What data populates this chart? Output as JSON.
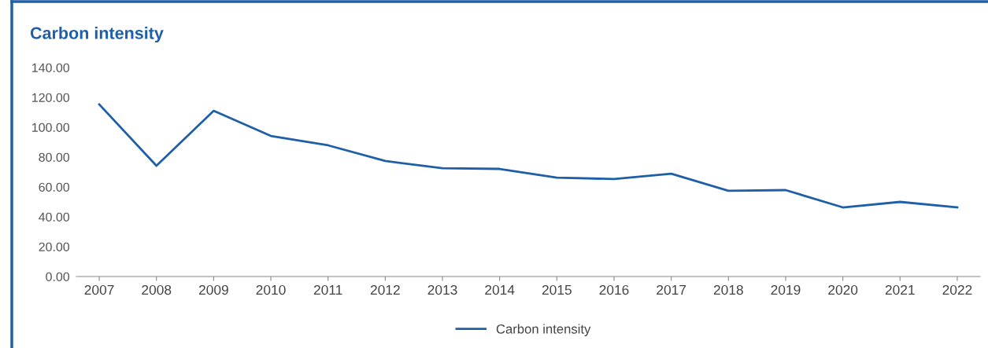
{
  "chart_data": {
    "type": "line",
    "title": "Carbon intensity",
    "categories": [
      "2007",
      "2008",
      "2009",
      "2010",
      "2011",
      "2012",
      "2013",
      "2014",
      "2015",
      "2016",
      "2017",
      "2018",
      "2019",
      "2020",
      "2021",
      "2022"
    ],
    "series": [
      {
        "name": "Carbon intensity",
        "color": "#1f5fa8",
        "values": [
          115.3,
          74.2,
          111,
          94.2,
          87.9,
          77.4,
          72.6,
          72.1,
          66.3,
          65.3,
          68.9,
          57.4,
          57.9,
          46.3,
          50,
          46.3
        ]
      }
    ],
    "ylim": [
      0,
      140
    ],
    "yticks": [
      {
        "value": 0,
        "label": "0.00"
      },
      {
        "value": 20,
        "label": "20.00"
      },
      {
        "value": 40,
        "label": "40.00"
      },
      {
        "value": 60,
        "label": "60.00"
      },
      {
        "value": 80,
        "label": "80.00"
      },
      {
        "value": 100,
        "label": "100.00"
      },
      {
        "value": 120,
        "label": "120.00"
      },
      {
        "value": 140,
        "label": "140.00"
      }
    ],
    "grid": false,
    "legend": "bottom",
    "marker": "none",
    "line_style": "solid"
  }
}
